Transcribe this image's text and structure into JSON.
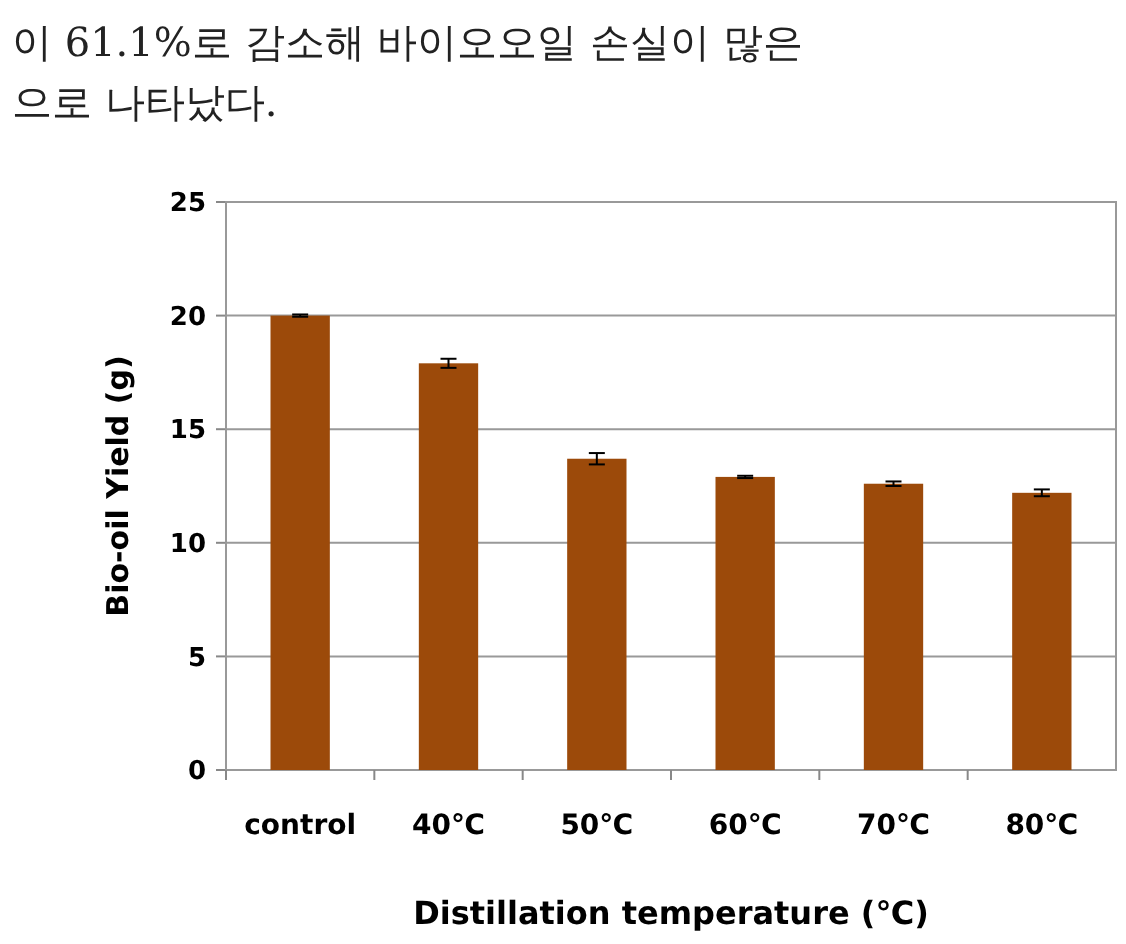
{
  "chart_data": {
    "type": "bar",
    "xlabel": "Distillation  temperature (℃)",
    "ylabel": "Bio-oil  Yield (g)",
    "annotations": [
      "이 61.1%로 감소해 바이오오일 손실이 많은",
      "으로 나타났다."
    ],
    "categories": [
      "control",
      "40℃",
      "50℃",
      "60℃",
      "70℃",
      "80℃"
    ],
    "values": [
      20,
      17.9,
      13.7,
      12.9,
      12.6,
      12.2
    ],
    "errors": [
      0.05,
      0.2,
      0.25,
      0.05,
      0.1,
      0.15
    ],
    "color": "#9c4a0a",
    "ylim": [
      0,
      25
    ],
    "yticks": [
      0,
      5,
      10,
      15,
      20,
      25
    ],
    "grid": "y"
  }
}
